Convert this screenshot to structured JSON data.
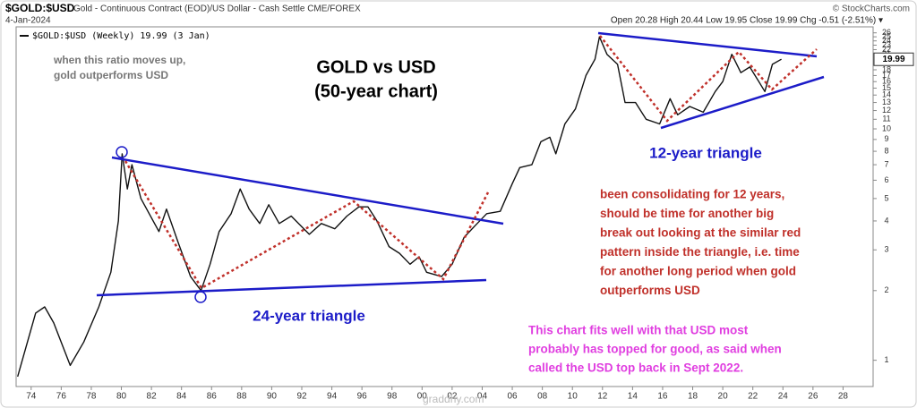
{
  "chart_data": {
    "type": "line",
    "title": "$GOLD:$USD",
    "subtitle": "Gold - Continuous Contract (EOD)/US Dollar - Cash Settle CME/FOREX",
    "date": "4-Jan-2024",
    "quote": "Open 20.28 High 20.44 Low 19.95 Close 19.99 Chg -0.51 (-2.51%) ▾",
    "source": "© StockCharts.com",
    "last_label": "19.99",
    "headline": [
      "GOLD vs USD",
      "(50-year chart)"
    ],
    "note_ratio": [
      "when this ratio moves up,",
      "gold outperforms USD"
    ],
    "label_24": "24-year triangle",
    "label_12": "12-year triangle",
    "note_red": [
      "been consolidating for 12 years,",
      "should be time for another big",
      "break out looking at the similar red",
      "pattern inside the triangle, i.e. time",
      "for another long period when gold",
      "outperforms USD"
    ],
    "note_pink": [
      "This chart fits well with that USD most",
      "probably has topped for good, as said when",
      "called the USD top back in Sept 2022."
    ],
    "watermark": "graddhy.com",
    "log_scale": true,
    "x": [
      1973.1,
      1974.3,
      1974.9,
      1975.5,
      1976.6,
      1977.5,
      1978.5,
      1979.3,
      1979.8,
      1980.05,
      1980.4,
      1980.7,
      1981.3,
      1982.5,
      1983.0,
      1983.8,
      1984.6,
      1985.3,
      1985.9,
      1986.5,
      1987.3,
      1987.9,
      1988.5,
      1989.2,
      1989.8,
      1990.5,
      1991.3,
      1992.5,
      1993.3,
      1994.2,
      1995.0,
      1995.8,
      1996.4,
      1997.0,
      1997.8,
      1998.5,
      1999.2,
      1999.8,
      2000.3,
      2001.3,
      2002.0,
      2002.8,
      2003.5,
      2004.3,
      2005.2,
      2006.0,
      2006.5,
      2007.3,
      2007.9,
      2008.5,
      2008.9,
      2009.5,
      2010.2,
      2010.9,
      2011.5,
      2011.8,
      2012.3,
      2013.0,
      2013.5,
      2014.2,
      2014.9,
      2015.8,
      2016.5,
      2017.0,
      2017.8,
      2018.7,
      2019.5,
      2020.0,
      2020.6,
      2021.2,
      2021.8,
      2022.4,
      2022.8,
      2023.3,
      2023.9
    ],
    "series": [
      {
        "name": "$GOLD:$USD (Weekly) 19.99 (3 Jan)",
        "color": "#111111",
        "values": [
          0.85,
          1.6,
          1.7,
          1.45,
          0.95,
          1.2,
          1.7,
          2.4,
          4.0,
          7.8,
          5.5,
          7.0,
          5.0,
          3.6,
          4.5,
          3.2,
          2.3,
          2.0,
          2.6,
          3.6,
          4.3,
          5.5,
          4.5,
          3.9,
          4.7,
          3.9,
          4.2,
          3.5,
          3.9,
          3.7,
          4.2,
          4.6,
          4.6,
          4.0,
          3.1,
          2.9,
          2.6,
          2.8,
          2.4,
          2.3,
          2.6,
          3.4,
          3.8,
          4.3,
          4.4,
          5.8,
          6.8,
          7.0,
          8.8,
          9.2,
          7.8,
          10.5,
          12.2,
          17,
          20,
          25,
          21,
          19,
          13,
          13,
          11,
          10.5,
          13.5,
          11.5,
          12.5,
          11.8,
          14.5,
          16,
          21,
          17.5,
          18.5,
          16,
          14.5,
          19,
          19.99
        ]
      }
    ],
    "xlim": [
      1973,
      2030
    ],
    "xticks": [
      {
        "value": 1974,
        "label": "74"
      },
      {
        "value": 1976,
        "label": "76"
      },
      {
        "value": 1978,
        "label": "78"
      },
      {
        "value": 1980,
        "label": "80"
      },
      {
        "value": 1982,
        "label": "82"
      },
      {
        "value": 1984,
        "label": "84"
      },
      {
        "value": 1986,
        "label": "86"
      },
      {
        "value": 1988,
        "label": "88"
      },
      {
        "value": 1990,
        "label": "90"
      },
      {
        "value": 1992,
        "label": "92"
      },
      {
        "value": 1994,
        "label": "94"
      },
      {
        "value": 1996,
        "label": "96"
      },
      {
        "value": 1998,
        "label": "98"
      },
      {
        "value": 2000,
        "label": "00"
      },
      {
        "value": 2002,
        "label": "02"
      },
      {
        "value": 2004,
        "label": "04"
      },
      {
        "value": 2006,
        "label": "06"
      },
      {
        "value": 2008,
        "label": "08"
      },
      {
        "value": 2010,
        "label": "10"
      },
      {
        "value": 2012,
        "label": "12"
      },
      {
        "value": 2014,
        "label": "14"
      },
      {
        "value": 2016,
        "label": "16"
      },
      {
        "value": 2018,
        "label": "18"
      },
      {
        "value": 2020,
        "label": "20"
      },
      {
        "value": 2022,
        "label": "22"
      },
      {
        "value": 2024,
        "label": "24"
      },
      {
        "value": 2026,
        "label": "26"
      },
      {
        "value": 2028,
        "label": "28"
      }
    ],
    "ylim": [
      0.77,
      27.6
    ],
    "yticks": [
      1,
      2,
      3,
      4,
      5,
      6,
      7,
      8,
      9,
      10,
      11,
      12,
      13,
      14,
      15,
      16,
      17,
      18,
      20,
      21,
      22,
      23,
      24,
      25,
      26
    ]
  }
}
